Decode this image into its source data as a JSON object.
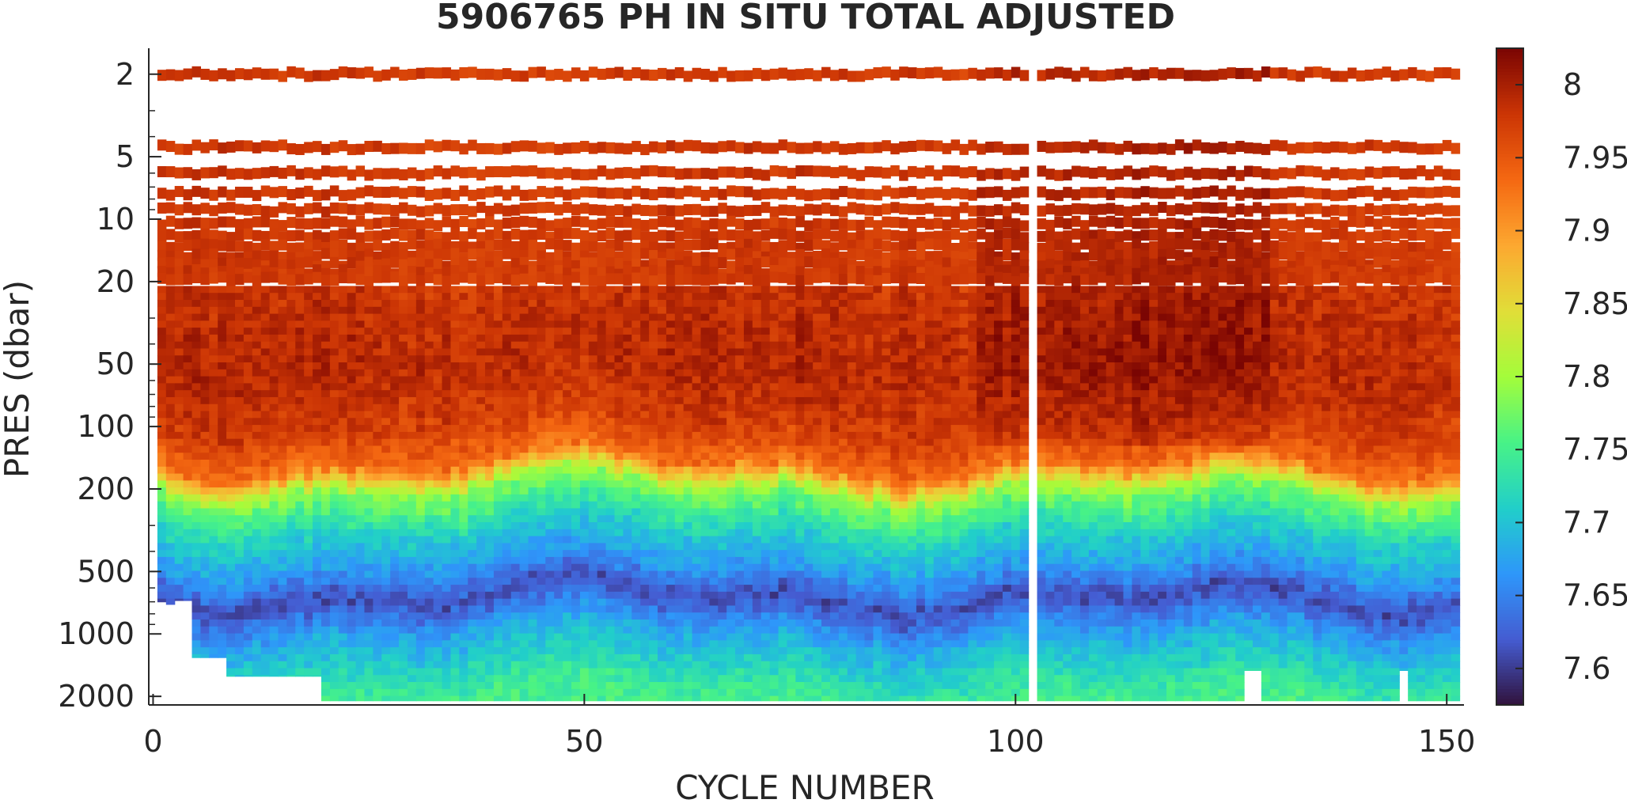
{
  "chart_data": {
    "type": "heatmap",
    "title": "5906765  PH IN SITU TOTAL ADJUSTED",
    "xlabel": "CYCLE NUMBER",
    "ylabel": "PRES (dbar)",
    "xlim": [
      -0.5,
      152
    ],
    "ylim": [
      2200,
      1.5
    ],
    "yscale": "log",
    "y_reversed": true,
    "x_ticks": [
      0,
      50,
      100,
      150
    ],
    "x_tick_labels": [
      "0",
      "50",
      "100",
      "150"
    ],
    "y_ticks": [
      2,
      5,
      10,
      20,
      50,
      100,
      200,
      500,
      1000,
      2000
    ],
    "y_tick_labels": [
      "2",
      "5",
      "10",
      "20",
      "50",
      "100",
      "200",
      "500",
      "1000",
      "2000"
    ],
    "colorbar": {
      "colormap": "turbo",
      "range": [
        7.575,
        8.025
      ],
      "ticks": [
        7.6,
        7.65,
        7.7,
        7.75,
        7.8,
        7.85,
        7.9,
        7.95,
        8
      ],
      "tick_labels": [
        "7.6",
        "7.65",
        "7.7",
        "7.75",
        "7.8",
        "7.85",
        "7.9",
        "7.95",
        "8"
      ]
    },
    "cycles": [
      1,
      151
    ],
    "missing_cycles": [
      102
    ],
    "shallow_levels_dbar": [
      2,
      4.5,
      6,
      7.5,
      9,
      10.5,
      12,
      13.5,
      15,
      16.5,
      18,
      19.5
    ],
    "max_depth_by_cycle": [
      {
        "cycles": [
          1,
          1
        ],
        "dbar": 700
      },
      {
        "cycles": [
          2,
          2
        ],
        "dbar": 720
      },
      {
        "cycles": [
          3,
          4
        ],
        "dbar": 690
      },
      {
        "cycles": [
          5,
          8
        ],
        "dbar": 1300
      },
      {
        "cycles": [
          9,
          19
        ],
        "dbar": 1600
      },
      {
        "cycles": [
          20,
          126
        ],
        "dbar": 2100
      },
      {
        "cycles": [
          127,
          128
        ],
        "dbar": 1500
      },
      {
        "cycles": [
          129,
          144
        ],
        "dbar": 2100
      },
      {
        "cycles": [
          145,
          145
        ],
        "dbar": 1500
      },
      {
        "cycles": [
          146,
          151
        ],
        "dbar": 2100
      }
    ],
    "profile_summary": [
      {
        "pres_dbar": 2,
        "ph": 7.97
      },
      {
        "pres_dbar": 20,
        "ph": 7.98
      },
      {
        "pres_dbar": 50,
        "ph": 7.99
      },
      {
        "pres_dbar": 100,
        "ph": 7.97
      },
      {
        "pres_dbar": 150,
        "ph": 7.93
      },
      {
        "pres_dbar": 200,
        "ph": 7.79
      },
      {
        "pres_dbar": 300,
        "ph": 7.72
      },
      {
        "pres_dbar": 500,
        "ph": 7.66
      },
      {
        "pres_dbar": 650,
        "ph": 7.61
      },
      {
        "pres_dbar": 1000,
        "ph": 7.68
      },
      {
        "pres_dbar": 2000,
        "ph": 7.75
      }
    ]
  }
}
